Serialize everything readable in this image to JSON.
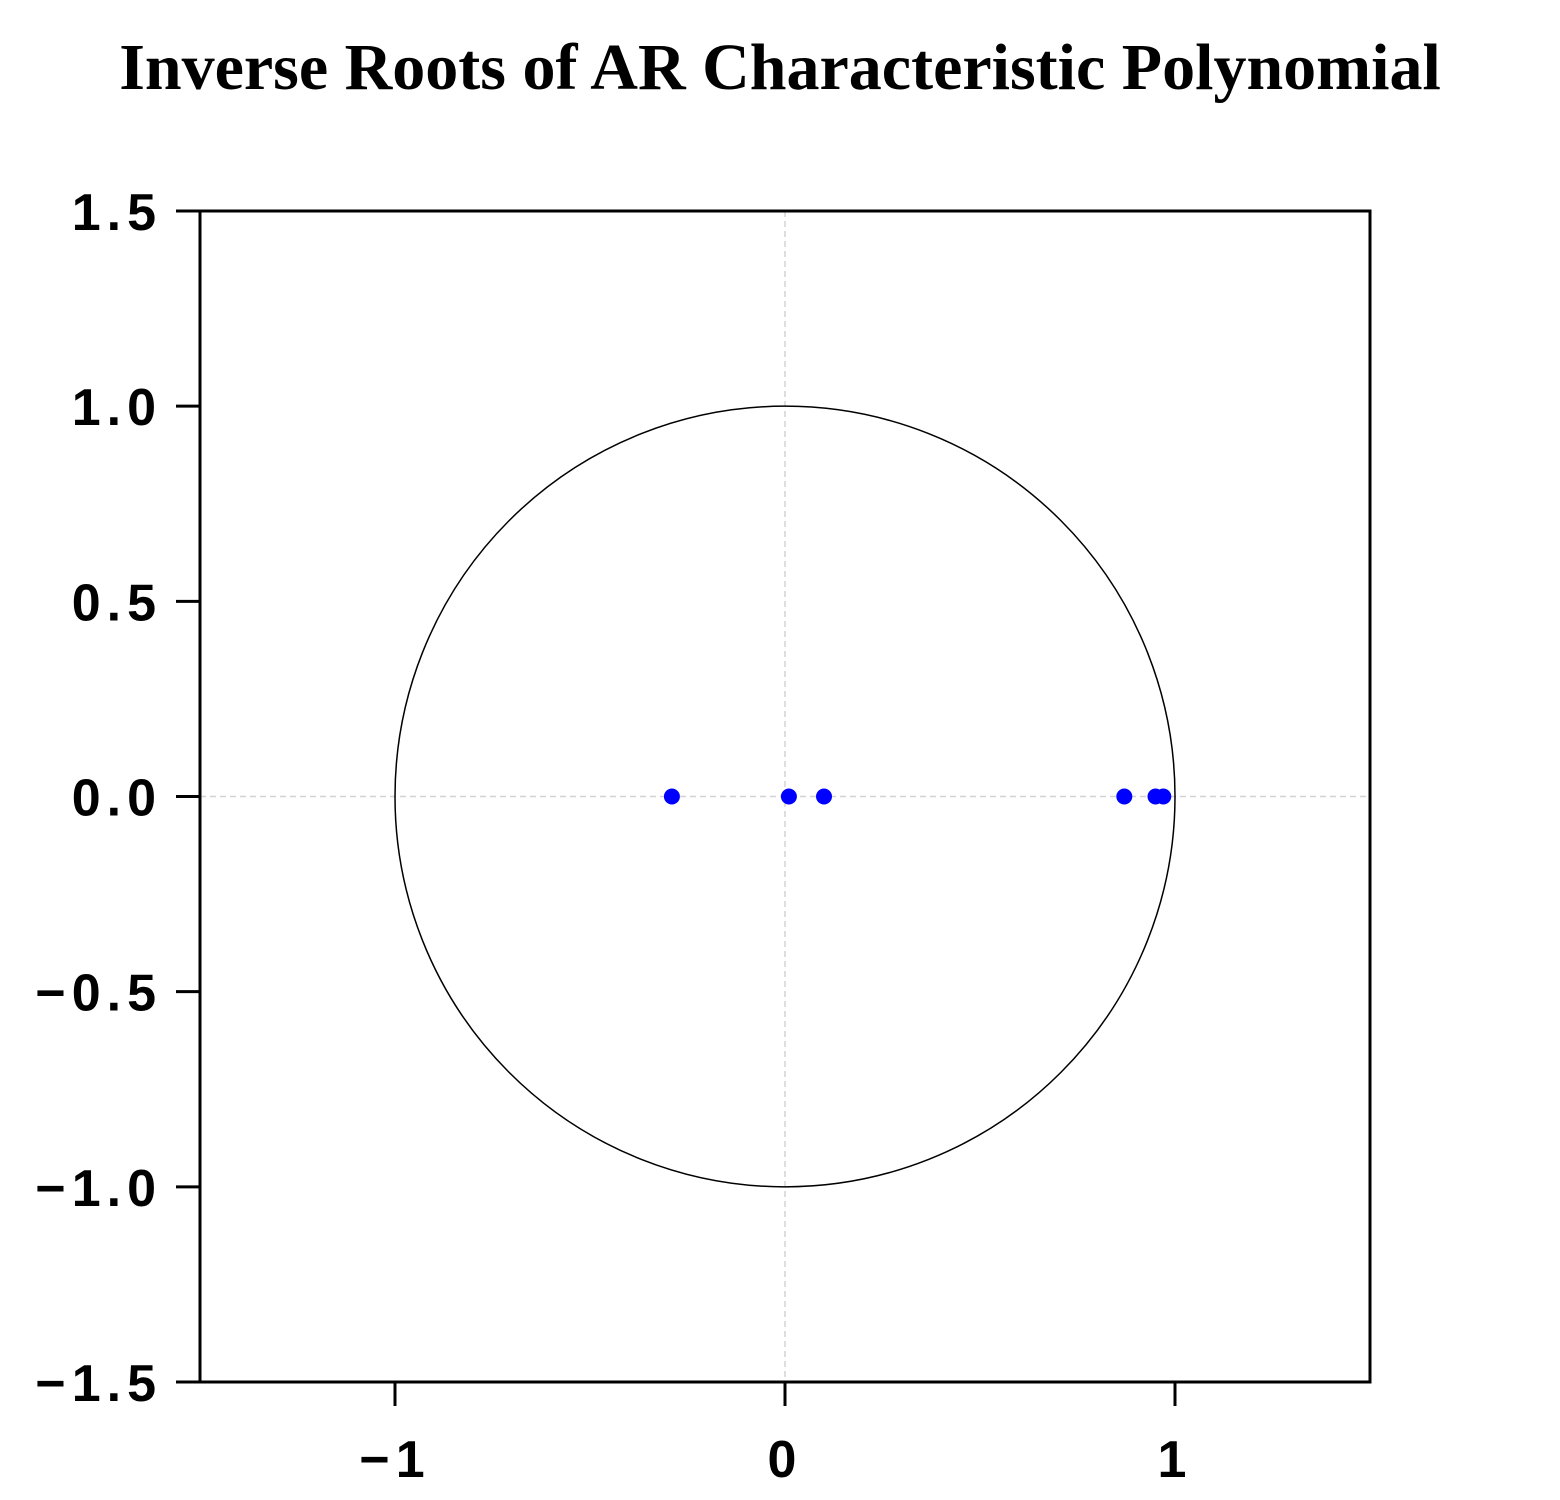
{
  "chart_data": {
    "type": "scatter",
    "title": "Inverse Roots of AR Characteristic Polynomial",
    "xlabel": "",
    "ylabel": "",
    "xlim": [
      -1.5,
      1.5
    ],
    "ylim": [
      -1.5,
      1.5
    ],
    "x_ticks": [
      -1,
      0,
      1
    ],
    "x_tick_labels": [
      "−1",
      "0",
      "1"
    ],
    "y_ticks": [
      -1.5,
      -1.0,
      -0.5,
      0.0,
      0.5,
      1.0,
      1.5
    ],
    "y_tick_labels": [
      "−1.5",
      "−1.0",
      "−0.5",
      "0.0",
      "0.5",
      "1.0",
      "1.5"
    ],
    "unit_circle": true,
    "reference_lines": {
      "x": 0,
      "y": 0,
      "style": "dashed"
    },
    "grid": false,
    "points": [
      {
        "x": -0.29,
        "y": 0.0
      },
      {
        "x": 0.01,
        "y": 0.0
      },
      {
        "x": 0.1,
        "y": 0.0
      },
      {
        "x": 0.87,
        "y": 0.0
      },
      {
        "x": 0.95,
        "y": 0.0
      },
      {
        "x": 0.97,
        "y": 0.0
      }
    ],
    "point_color": "#0000ff",
    "circle_color": "#000000",
    "reference_line_color": "#d3d3d3"
  }
}
